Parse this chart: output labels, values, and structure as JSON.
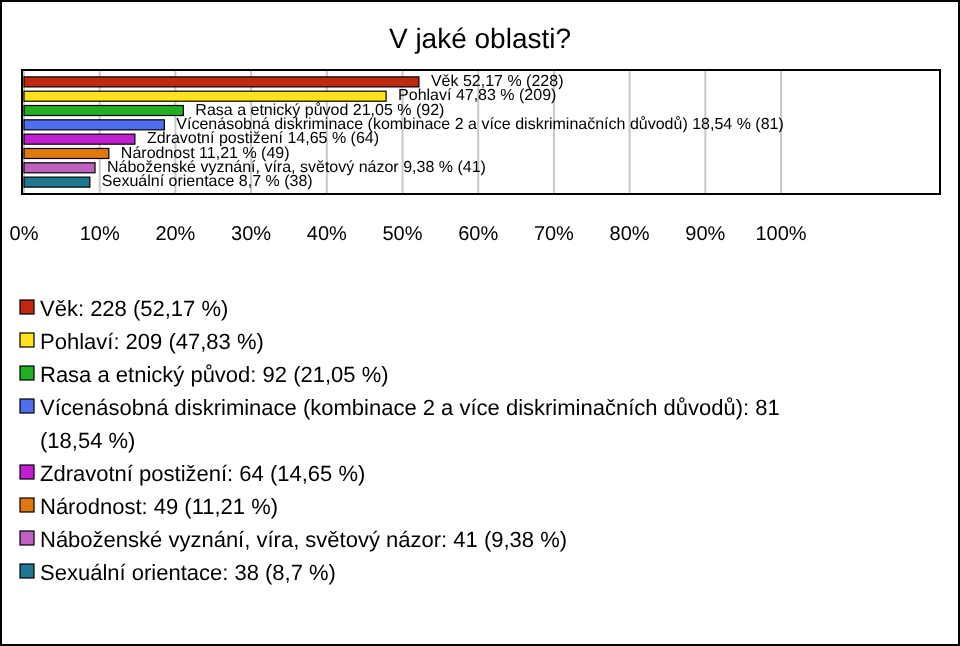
{
  "chart_data": {
    "type": "bar",
    "orientation": "horizontal",
    "title": "V jaké oblasti?",
    "categories": [
      "Věk",
      "Pohlaví",
      "Rasa a etnický původ",
      "Vícenásobná diskriminace (kombinace 2 a více diskriminačních důvodů)",
      "Zdravotní postižení",
      "Národnost",
      "Náboženské vyznání, víra, světový názor",
      "Sexuální orientace"
    ],
    "values": [
      52.17,
      47.83,
      21.05,
      18.54,
      14.65,
      11.21,
      9.38,
      8.7
    ],
    "value_labels": [
      "52,17 % (228)",
      "47,83 % (209)",
      "21,05 % (92)",
      "18,54 % (81)",
      "14,65 % (64)",
      "11,21 % (49)",
      "9,38 % (41)",
      "8,7 % (38)"
    ],
    "colors": [
      "#c0280f",
      "#ffe21a",
      "#22b022",
      "#4f6ff0",
      "#c020d0",
      "#e07810",
      "#c060c0",
      "#207890"
    ],
    "xlim": [
      0,
      121
    ],
    "xticks": [
      {
        "value": 0,
        "label": "0%"
      },
      {
        "value": 10,
        "label": "10%"
      },
      {
        "value": 20,
        "label": "20%"
      },
      {
        "value": 30,
        "label": "30%"
      },
      {
        "value": 40,
        "label": "40%"
      },
      {
        "value": 50,
        "label": "50%"
      },
      {
        "value": 60,
        "label": "60%"
      },
      {
        "value": 70,
        "label": "70%"
      },
      {
        "value": 80,
        "label": "80%"
      },
      {
        "value": 90,
        "label": "90%"
      },
      {
        "value": 100,
        "label": "100%"
      }
    ],
    "grid": "x",
    "annotations": [
      "Věk: 228 (52,17 %)",
      "Pohlaví: 209 (47,83 %)",
      "Rasa a etnický původ: 92 (21,05 %)",
      "Vícenásobná diskriminace (kombinace 2 a více diskriminačních důvodů): 81 (18,54 %)",
      "Zdravotní postižení: 64 (14,65 %)",
      "Národnost: 49 (11,21 %)",
      "Náboženské vyznání, víra, světový názor: 41 (9,38 %)",
      "Sexuální orientace: 38 (8,7 %)"
    ]
  }
}
